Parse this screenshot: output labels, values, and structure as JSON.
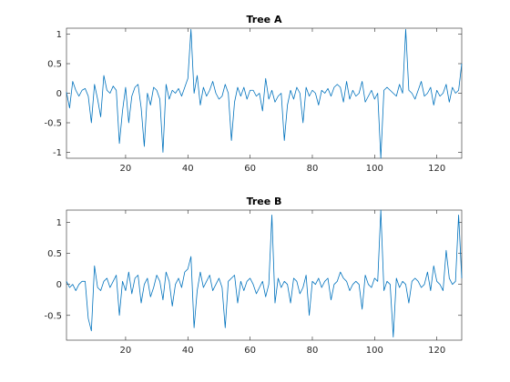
{
  "chart_data": [
    {
      "type": "line",
      "title": "Tree A",
      "xlabel": "",
      "ylabel": "",
      "xlim": [
        1,
        128
      ],
      "ylim": [
        -1.1,
        1.1
      ],
      "grid": false,
      "x_ticks": [
        20,
        40,
        60,
        80,
        100,
        120
      ],
      "x_tick_labels": [
        "20",
        "40",
        "60",
        "80",
        "100",
        "120"
      ],
      "y_ticks": [
        -1,
        -0.5,
        0,
        0.5,
        1
      ],
      "y_tick_labels": [
        "-1",
        "-0.5",
        "0",
        "0.5",
        "1"
      ],
      "line_color": "#0072BD",
      "x": [
        1,
        2,
        3,
        4,
        5,
        6,
        7,
        8,
        9,
        10,
        11,
        12,
        13,
        14,
        15,
        16,
        17,
        18,
        19,
        20,
        21,
        22,
        23,
        24,
        25,
        26,
        27,
        28,
        29,
        30,
        31,
        32,
        33,
        34,
        35,
        36,
        37,
        38,
        39,
        40,
        41,
        42,
        43,
        44,
        45,
        46,
        47,
        48,
        49,
        50,
        51,
        52,
        53,
        54,
        55,
        56,
        57,
        58,
        59,
        60,
        61,
        62,
        63,
        64,
        65,
        66,
        67,
        68,
        69,
        70,
        71,
        72,
        73,
        74,
        75,
        76,
        77,
        78,
        79,
        80,
        81,
        82,
        83,
        84,
        85,
        86,
        87,
        88,
        89,
        90,
        91,
        92,
        93,
        94,
        95,
        96,
        97,
        98,
        99,
        100,
        101,
        102,
        103,
        104,
        105,
        106,
        107,
        108,
        109,
        110,
        111,
        112,
        113,
        114,
        115,
        116,
        117,
        118,
        119,
        120,
        121,
        122,
        123,
        124,
        125,
        126,
        127,
        128
      ],
      "series": [
        {
          "values": [
            0.02,
            -0.25,
            0.2,
            0.05,
            -0.05,
            0.05,
            0.08,
            -0.05,
            -0.5,
            0.15,
            -0.1,
            -0.4,
            0.3,
            0.05,
            0.0,
            0.12,
            0.05,
            -0.85,
            -0.3,
            0.1,
            -0.5,
            -0.05,
            0.1,
            0.15,
            -0.25,
            -0.9,
            0.0,
            -0.2,
            0.1,
            0.05,
            -0.1,
            -1.0,
            0.15,
            -0.1,
            0.05,
            0.0,
            0.08,
            -0.05,
            0.1,
            0.25,
            1.08,
            0.0,
            0.3,
            -0.2,
            0.1,
            -0.05,
            0.05,
            0.2,
            0.0,
            -0.1,
            -0.05,
            0.15,
            0.0,
            -0.8,
            -0.15,
            0.1,
            -0.05,
            0.1,
            -0.1,
            0.05,
            0.05,
            -0.05,
            0.0,
            -0.3,
            0.25,
            -0.1,
            0.05,
            -0.15,
            -0.05,
            0.0,
            -0.8,
            -0.2,
            0.05,
            -0.1,
            0.1,
            0.0,
            -0.5,
            0.1,
            -0.05,
            0.05,
            0.0,
            -0.2,
            0.05,
            0.0,
            0.08,
            -0.05,
            0.1,
            0.15,
            0.1,
            -0.15,
            0.2,
            -0.1,
            0.05,
            -0.05,
            0.0,
            0.2,
            -0.15,
            -0.05,
            0.05,
            -0.1,
            0.0,
            -1.1,
            0.05,
            0.1,
            0.05,
            0.0,
            -0.05,
            0.15,
            0.0,
            1.08,
            0.05,
            0.0,
            -0.1,
            0.05,
            0.2,
            -0.05,
            0.0,
            0.1,
            -0.2,
            0.05,
            -0.05,
            0.0,
            0.15,
            -0.15,
            0.1,
            0.0,
            0.05,
            0.5
          ]
        }
      ]
    },
    {
      "type": "line",
      "title": "Tree B",
      "xlabel": "",
      "ylabel": "",
      "xlim": [
        1,
        128
      ],
      "ylim": [
        -0.9,
        1.2
      ],
      "grid": false,
      "x_ticks": [
        20,
        40,
        60,
        80,
        100,
        120
      ],
      "x_tick_labels": [
        "20",
        "40",
        "60",
        "80",
        "100",
        "120"
      ],
      "y_ticks": [
        -0.5,
        0,
        0.5,
        1
      ],
      "y_tick_labels": [
        "-0.5",
        "0",
        "0.5",
        "1"
      ],
      "line_color": "#0072BD",
      "x": [
        1,
        2,
        3,
        4,
        5,
        6,
        7,
        8,
        9,
        10,
        11,
        12,
        13,
        14,
        15,
        16,
        17,
        18,
        19,
        20,
        21,
        22,
        23,
        24,
        25,
        26,
        27,
        28,
        29,
        30,
        31,
        32,
        33,
        34,
        35,
        36,
        37,
        38,
        39,
        40,
        41,
        42,
        43,
        44,
        45,
        46,
        47,
        48,
        49,
        50,
        51,
        52,
        53,
        54,
        55,
        56,
        57,
        58,
        59,
        60,
        61,
        62,
        63,
        64,
        65,
        66,
        67,
        68,
        69,
        70,
        71,
        72,
        73,
        74,
        75,
        76,
        77,
        78,
        79,
        80,
        81,
        82,
        83,
        84,
        85,
        86,
        87,
        88,
        89,
        90,
        91,
        92,
        93,
        94,
        95,
        96,
        97,
        98,
        99,
        100,
        101,
        102,
        103,
        104,
        105,
        106,
        107,
        108,
        109,
        110,
        111,
        112,
        113,
        114,
        115,
        116,
        117,
        118,
        119,
        120,
        121,
        122,
        123,
        124,
        125,
        126,
        127,
        128
      ],
      "series": [
        {
          "values": [
            0.05,
            -0.05,
            0.0,
            -0.1,
            0.0,
            0.05,
            0.05,
            -0.55,
            -0.75,
            0.3,
            -0.05,
            -0.1,
            0.05,
            0.1,
            -0.05,
            0.05,
            0.15,
            -0.5,
            0.05,
            -0.1,
            0.2,
            -0.15,
            0.1,
            0.15,
            -0.3,
            0.0,
            0.1,
            -0.2,
            -0.05,
            0.15,
            0.05,
            -0.25,
            0.2,
            0.05,
            -0.35,
            0.0,
            0.1,
            -0.05,
            0.2,
            0.25,
            0.45,
            -0.7,
            -0.1,
            0.2,
            -0.05,
            0.05,
            0.15,
            -0.1,
            0.0,
            0.1,
            -0.05,
            -0.7,
            0.05,
            0.1,
            0.15,
            -0.3,
            0.05,
            -0.1,
            0.05,
            0.1,
            0.0,
            -0.15,
            -0.05,
            0.05,
            -0.2,
            0.0,
            1.12,
            -0.3,
            0.1,
            -0.05,
            0.05,
            0.0,
            -0.3,
            0.1,
            0.05,
            -0.15,
            -0.05,
            0.15,
            -0.5,
            0.05,
            0.0,
            0.1,
            -0.05,
            0.05,
            0.1,
            -0.25,
            0.0,
            0.05,
            0.2,
            0.1,
            0.05,
            -0.1,
            0.0,
            0.05,
            0.0,
            -0.4,
            0.15,
            0.0,
            -0.05,
            0.1,
            0.05,
            1.2,
            -0.1,
            0.05,
            0.0,
            -0.85,
            0.1,
            -0.05,
            0.05,
            0.0,
            -0.3,
            0.05,
            0.1,
            0.05,
            -0.05,
            0.0,
            0.2,
            -0.1,
            0.3,
            0.05,
            0.0,
            -0.1,
            0.55,
            0.1,
            0.0,
            0.05,
            1.12,
            0.1
          ]
        }
      ]
    }
  ]
}
